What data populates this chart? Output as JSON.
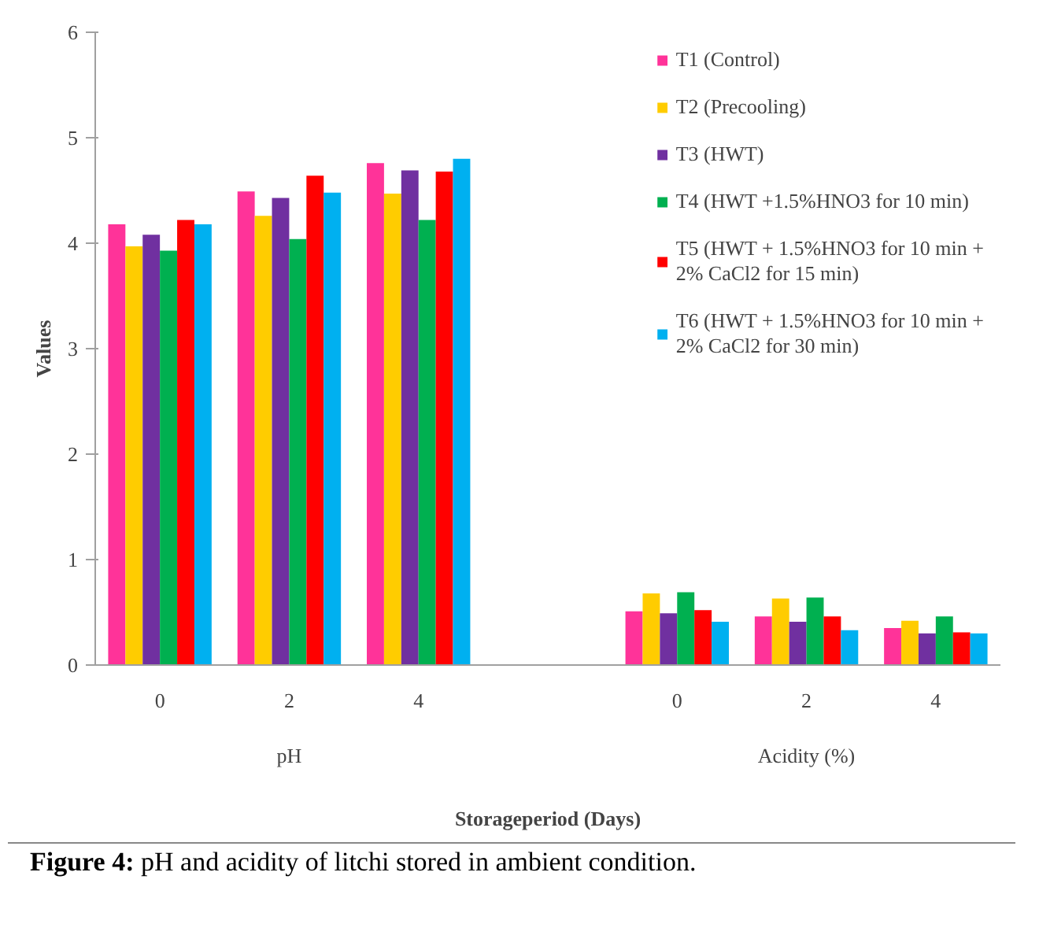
{
  "chart_data": {
    "type": "bar",
    "categories": [
      "0",
      "2",
      "4",
      null,
      "0",
      "2",
      "4"
    ],
    "series": [
      {
        "name": "T1 (Control)",
        "color": "#ff3399",
        "values": [
          4.18,
          4.49,
          4.76,
          null,
          0.51,
          0.46,
          0.35
        ]
      },
      {
        "name": "T2 (Precooling)",
        "color": "#ffcc00",
        "values": [
          3.97,
          4.26,
          4.47,
          null,
          0.68,
          0.63,
          0.42
        ]
      },
      {
        "name": "T3 (HWT)",
        "color": "#7030a0",
        "values": [
          4.08,
          4.43,
          4.69,
          null,
          0.49,
          0.41,
          0.3
        ]
      },
      {
        "name": "T4 (HWT +1.5%HNO3 for 10 min)",
        "color": "#00b050",
        "values": [
          3.93,
          4.04,
          4.22,
          null,
          0.69,
          0.64,
          0.46
        ]
      },
      {
        "name": "T5 (HWT + 1.5%HNO3 for 10 min + 2% CaCl2 for 15 min)",
        "color": "#ff0000",
        "values": [
          4.22,
          4.64,
          4.68,
          null,
          0.52,
          0.46,
          0.31
        ]
      },
      {
        "name": "T6 (HWT + 1.5%HNO3 for 10 min + 2% CaCl2 for 30 min)",
        "color": "#00b0f0",
        "values": [
          4.18,
          4.48,
          4.8,
          null,
          0.41,
          0.33,
          0.3
        ]
      }
    ],
    "ylim": [
      0,
      6
    ],
    "yticks": [
      0,
      1,
      2,
      3,
      4,
      5,
      6
    ],
    "ylabel": "Values",
    "xlabel": "Storageperiod (Days)",
    "annotations": [
      "pH",
      "Acidity (%)",
      "Figure 4: pH and acidity of litchi stored in ambient condition."
    ],
    "legend": "top right",
    "grid": false
  }
}
